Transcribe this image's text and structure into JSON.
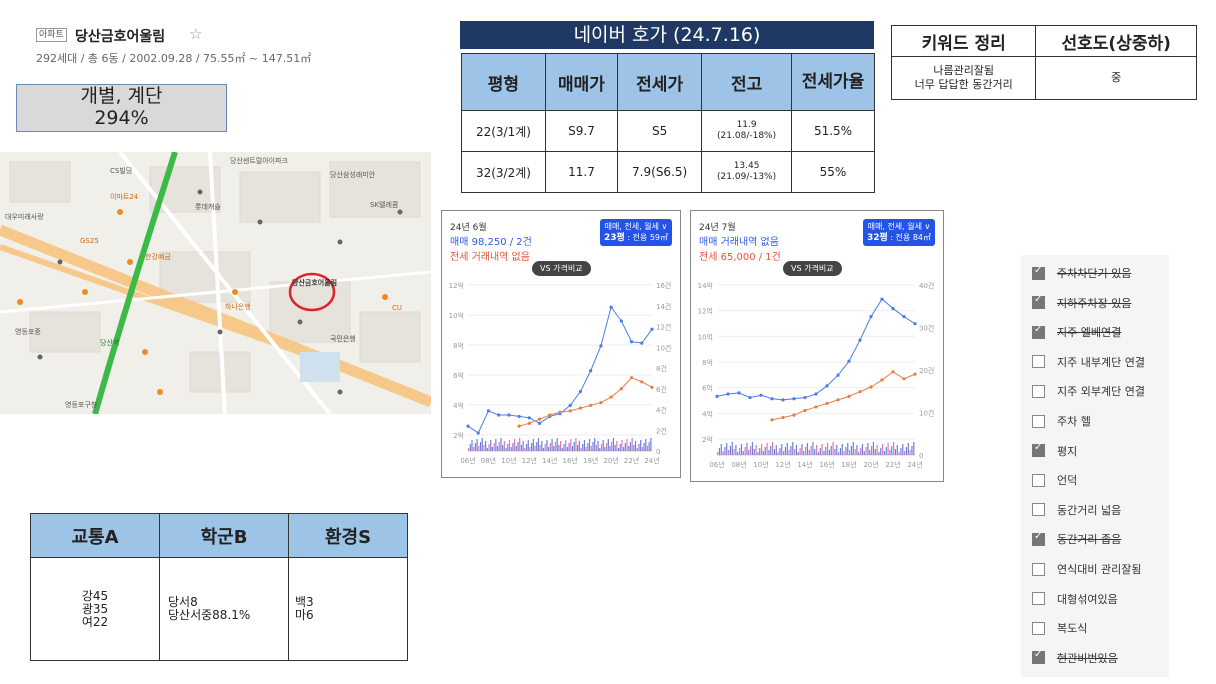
{
  "apartment": {
    "tag": "아파트",
    "name": "당산금호어울림",
    "star": "☆",
    "info": "292세대 / 총 6동 / 2002.09.28 / 75.55㎡ ~ 147.51㎡"
  },
  "gray_box": {
    "line1": "개별, 계단",
    "line2": "294%"
  },
  "naver": {
    "title": "네이버 호가 (24.7.16)",
    "headers": [
      "평형",
      "매매가",
      "전세가",
      "전고",
      "전세가율"
    ],
    "rows": [
      {
        "type": "22(3/1계)",
        "sale": "S9.7",
        "jeonse": "S5",
        "high": "11.9",
        "high_note": "(21.08/-18%)",
        "ratio": "51.5%"
      },
      {
        "type": "32(3/2계)",
        "sale": "11.7",
        "jeonse": "7.9(S6.5)",
        "high": "13.45",
        "high_note": "(21.09/-13%)",
        "ratio": "55%"
      }
    ]
  },
  "keywords": {
    "headers": [
      "키워드 정리",
      "선호도(상중하)"
    ],
    "summary": [
      "나름관리잘됨",
      "너무 답답한 동간거리"
    ],
    "preference": "중"
  },
  "score_table": {
    "headers": [
      "교통A",
      "학군B",
      "환경S"
    ],
    "transport": [
      "강45",
      "광35",
      "여22"
    ],
    "school": [
      "당서8",
      "당산서중88.1%"
    ],
    "env": [
      "백3",
      "마6"
    ]
  },
  "charts": [
    {
      "month": "24년 6월",
      "line1": "매매 98,250 / 2건",
      "line2": "전세 거래내역 없음",
      "selector": "매매, 전세, 월세 ∨",
      "size_main": "23평",
      "size_sub": ": 전용 59㎡",
      "vs": "VS 가격비교"
    },
    {
      "month": "24년 7월",
      "line1": "매매 거래내역 없음",
      "line2": "전세 65,000 / 1건",
      "selector": "매매, 전세, 월세 ∨",
      "size_main": "32평",
      "size_sub": ": 전용 84㎡",
      "vs": "VS 가격비교"
    }
  ],
  "chart_data": [
    {
      "type": "line",
      "x": [
        "06년",
        "07년",
        "08년",
        "09년",
        "10년",
        "11년",
        "12년",
        "13년",
        "14년",
        "15년",
        "16년",
        "17년",
        "18년",
        "19년",
        "20년",
        "21년",
        "22년",
        "23년",
        "24년"
      ],
      "x_ticks": [
        "06년",
        "08년",
        "10년",
        "12년",
        "14년",
        "16년",
        "18년",
        "20년",
        "22년",
        "24년"
      ],
      "y_ticks_left": [
        "2억",
        "4억",
        "6억",
        "8억",
        "10억",
        "12억"
      ],
      "y_ticks_right": [
        "0",
        "2건",
        "4건",
        "6건",
        "8건",
        "10건",
        "12건",
        "14건",
        "16건"
      ],
      "ylim": [
        1,
        13
      ],
      "series": [
        {
          "name": "매매",
          "color": "#4a7de8",
          "values": [
            2.8,
            2.3,
            3.9,
            3.6,
            3.6,
            3.5,
            3.4,
            3.0,
            3.5,
            3.7,
            4.3,
            5.3,
            6.8,
            8.6,
            11.4,
            10.4,
            8.9,
            8.8,
            9.8
          ]
        },
        {
          "name": "전세",
          "color": "#e87d4a",
          "values": [
            null,
            null,
            null,
            null,
            null,
            2.8,
            3.0,
            3.3,
            3.6,
            3.8,
            3.9,
            4.1,
            4.3,
            4.5,
            4.9,
            5.5,
            6.3,
            6.0,
            5.6
          ]
        }
      ]
    },
    {
      "type": "line",
      "x": [
        "06년",
        "07년",
        "08년",
        "09년",
        "10년",
        "11년",
        "12년",
        "13년",
        "14년",
        "15년",
        "16년",
        "17년",
        "18년",
        "19년",
        "20년",
        "21년",
        "22년",
        "23년",
        "24년"
      ],
      "x_ticks": [
        "06년",
        "08년",
        "10년",
        "12년",
        "14년",
        "16년",
        "18년",
        "20년",
        "22년",
        "24년"
      ],
      "y_ticks_left": [
        "2억",
        "4억",
        "6억",
        "8억",
        "10억",
        "12억",
        "14억"
      ],
      "y_ticks_right": [
        "0",
        "10건",
        "20건",
        "30건",
        "40건"
      ],
      "ylim": [
        0,
        14.5
      ],
      "series": [
        {
          "name": "매매",
          "color": "#4a7de8",
          "values": [
            5.0,
            5.2,
            5.3,
            4.9,
            5.1,
            4.8,
            4.7,
            4.8,
            4.9,
            5.2,
            5.9,
            6.8,
            8.0,
            9.8,
            11.8,
            13.3,
            12.5,
            11.8,
            11.2
          ]
        },
        {
          "name": "전세",
          "color": "#e87d4a",
          "values": [
            null,
            null,
            null,
            null,
            null,
            3.0,
            3.2,
            3.4,
            3.8,
            4.1,
            4.4,
            4.7,
            5.0,
            5.4,
            5.8,
            6.4,
            7.1,
            6.5,
            6.9
          ]
        }
      ]
    }
  ],
  "checklist": [
    {
      "label": "주차차단기 있음",
      "checked": true,
      "strike": true
    },
    {
      "label": "지하주차장 있음",
      "checked": true,
      "strike": true
    },
    {
      "label": "지주 엘베연결",
      "checked": true,
      "strike": true
    },
    {
      "label": "지주 내부계단 연결",
      "checked": false,
      "strike": false
    },
    {
      "label": "지주 외부계단 연결",
      "checked": false,
      "strike": false
    },
    {
      "label": "주차 헬",
      "checked": false,
      "strike": false
    },
    {
      "label": "평지",
      "checked": true,
      "strike": false
    },
    {
      "label": "언덕",
      "checked": false,
      "strike": false
    },
    {
      "label": "동간거리 넓음",
      "checked": false,
      "strike": false
    },
    {
      "label": "동간거리 좁음",
      "checked": true,
      "strike": true
    },
    {
      "label": "연식대비 관리잘됨",
      "checked": false,
      "strike": false
    },
    {
      "label": "대형섞여있음",
      "checked": false,
      "strike": false
    },
    {
      "label": "복도식",
      "checked": false,
      "strike": false
    },
    {
      "label": "현관비번있음",
      "checked": true,
      "strike": true
    }
  ],
  "map": {
    "labels": [
      "CS빌딩",
      "당산센트럴아이파크",
      "SK텔레콤",
      "롯데캐슬",
      "영등포구청",
      "당산역",
      "한강예금",
      "국민은행",
      "당산삼성래미안",
      "대우미래사랑",
      "GS25",
      "CU",
      "하나은행",
      "영등포중",
      "이마트24",
      "당산금호어울림"
    ],
    "colors": {
      "road": "#f6c98b",
      "subway": "#3bba48",
      "highlight": "#d9262c"
    }
  }
}
